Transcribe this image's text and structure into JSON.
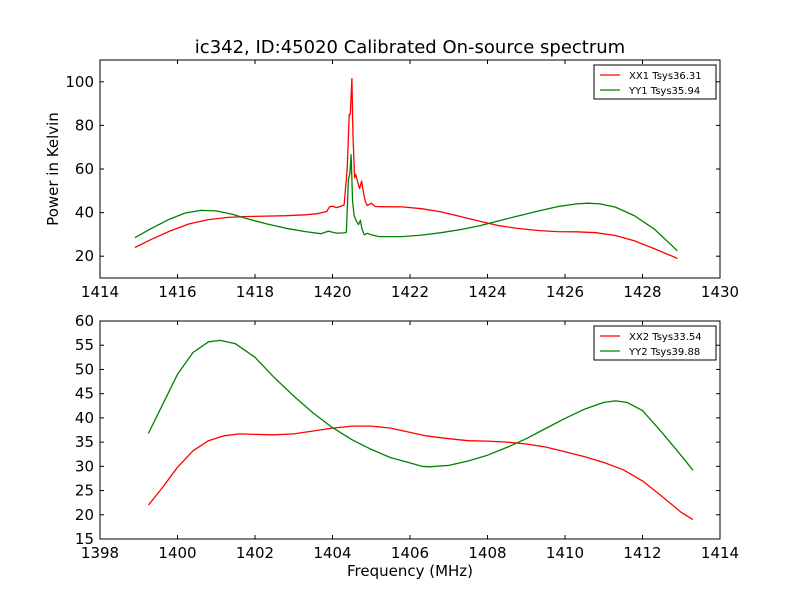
{
  "title": "ic342, ID:45020 Calibrated On-source spectrum",
  "colors": {
    "xx": "#ff0000",
    "yy": "#008000",
    "axis": "#000000",
    "background": "#ffffff"
  },
  "chart_data": [
    {
      "type": "line",
      "title": "ic342, ID:45020 Calibrated On-source spectrum",
      "xlabel": "",
      "ylabel": "Power in Kelvin",
      "xlim": [
        1414,
        1430
      ],
      "ylim": [
        10,
        110
      ],
      "xticks": [
        1414,
        1416,
        1418,
        1420,
        1422,
        1424,
        1426,
        1428,
        1430
      ],
      "yticks": [
        20,
        40,
        60,
        80,
        100
      ],
      "grid": false,
      "legend": "top-right",
      "series": [
        {
          "name": "XX1 Tsys36.31",
          "color": "#ff0000",
          "points": [
            [
              1414.9,
              24.0
            ],
            [
              1415.3,
              27.5
            ],
            [
              1415.8,
              31.5
            ],
            [
              1416.3,
              34.8
            ],
            [
              1416.8,
              36.8
            ],
            [
              1417.3,
              37.8
            ],
            [
              1417.8,
              38.2
            ],
            [
              1418.3,
              38.4
            ],
            [
              1418.8,
              38.6
            ],
            [
              1419.3,
              39.0
            ],
            [
              1419.6,
              39.5
            ],
            [
              1419.85,
              40.5
            ],
            [
              1419.92,
              42.6
            ],
            [
              1420.0,
              43.0
            ],
            [
              1420.1,
              42.3
            ],
            [
              1420.2,
              42.8
            ],
            [
              1420.3,
              43.5
            ],
            [
              1420.38,
              60.0
            ],
            [
              1420.43,
              85.0
            ],
            [
              1420.46,
              85.0
            ],
            [
              1420.5,
              101.5
            ],
            [
              1420.53,
              75.0
            ],
            [
              1420.57,
              56.0
            ],
            [
              1420.6,
              57.5
            ],
            [
              1420.65,
              54.0
            ],
            [
              1420.7,
              51.0
            ],
            [
              1420.75,
              54.5
            ],
            [
              1420.8,
              49.0
            ],
            [
              1420.85,
              45.0
            ],
            [
              1420.9,
              43.2
            ],
            [
              1421.0,
              44.3
            ],
            [
              1421.1,
              42.8
            ],
            [
              1421.3,
              42.7
            ],
            [
              1421.8,
              42.6
            ],
            [
              1422.3,
              41.8
            ],
            [
              1422.8,
              40.3
            ],
            [
              1423.3,
              38.2
            ],
            [
              1423.8,
              36.0
            ],
            [
              1424.3,
              34.0
            ],
            [
              1424.8,
              32.7
            ],
            [
              1425.3,
              31.8
            ],
            [
              1425.8,
              31.3
            ],
            [
              1426.3,
              31.2
            ],
            [
              1426.8,
              30.8
            ],
            [
              1427.3,
              29.5
            ],
            [
              1427.8,
              27.0
            ],
            [
              1428.3,
              23.5
            ],
            [
              1428.9,
              19.0
            ]
          ]
        },
        {
          "name": "YY1 Tsys35.94",
          "color": "#008000",
          "points": [
            [
              1414.9,
              28.5
            ],
            [
              1415.3,
              32.5
            ],
            [
              1415.8,
              37.0
            ],
            [
              1416.2,
              39.8
            ],
            [
              1416.6,
              41.0
            ],
            [
              1417.0,
              40.8
            ],
            [
              1417.4,
              39.3
            ],
            [
              1417.8,
              37.2
            ],
            [
              1418.3,
              34.8
            ],
            [
              1418.8,
              32.8
            ],
            [
              1419.3,
              31.3
            ],
            [
              1419.7,
              30.3
            ],
            [
              1419.9,
              31.5
            ],
            [
              1420.0,
              31.0
            ],
            [
              1420.1,
              30.6
            ],
            [
              1420.3,
              30.7
            ],
            [
              1420.36,
              31.0
            ],
            [
              1420.41,
              55.0
            ],
            [
              1420.45,
              58.0
            ],
            [
              1420.48,
              66.5
            ],
            [
              1420.52,
              45.0
            ],
            [
              1420.56,
              38.5
            ],
            [
              1420.62,
              36.0
            ],
            [
              1420.67,
              34.5
            ],
            [
              1420.72,
              36.5
            ],
            [
              1420.76,
              32.5
            ],
            [
              1420.82,
              29.8
            ],
            [
              1420.9,
              30.5
            ],
            [
              1421.0,
              29.8
            ],
            [
              1421.2,
              29.0
            ],
            [
              1421.8,
              29.0
            ],
            [
              1422.3,
              29.7
            ],
            [
              1422.8,
              30.8
            ],
            [
              1423.3,
              32.2
            ],
            [
              1423.8,
              34.0
            ],
            [
              1424.3,
              36.3
            ],
            [
              1424.8,
              38.5
            ],
            [
              1425.3,
              40.7
            ],
            [
              1425.8,
              42.7
            ],
            [
              1426.3,
              44.0
            ],
            [
              1426.6,
              44.3
            ],
            [
              1426.9,
              44.0
            ],
            [
              1427.3,
              42.5
            ],
            [
              1427.8,
              38.5
            ],
            [
              1428.3,
              32.5
            ],
            [
              1428.9,
              22.5
            ]
          ]
        }
      ]
    },
    {
      "type": "line",
      "title": "",
      "xlabel": "Frequency (MHz)",
      "ylabel": "",
      "xlim": [
        1398,
        1414
      ],
      "ylim": [
        15,
        60
      ],
      "xticks": [
        1398,
        1400,
        1402,
        1404,
        1406,
        1408,
        1410,
        1412,
        1414
      ],
      "yticks": [
        15,
        20,
        25,
        30,
        35,
        40,
        45,
        50,
        55,
        60
      ],
      "grid": false,
      "legend": "top-right",
      "series": [
        {
          "name": "XX2 Tsys33.54",
          "color": "#ff0000",
          "points": [
            [
              1399.25,
              22.0
            ],
            [
              1399.6,
              25.5
            ],
            [
              1400.0,
              29.8
            ],
            [
              1400.4,
              33.2
            ],
            [
              1400.8,
              35.3
            ],
            [
              1401.2,
              36.3
            ],
            [
              1401.6,
              36.7
            ],
            [
              1402.0,
              36.6
            ],
            [
              1402.5,
              36.5
            ],
            [
              1403.0,
              36.7
            ],
            [
              1403.5,
              37.3
            ],
            [
              1404.0,
              37.9
            ],
            [
              1404.5,
              38.3
            ],
            [
              1405.0,
              38.3
            ],
            [
              1405.5,
              37.9
            ],
            [
              1406.0,
              37.0
            ],
            [
              1406.4,
              36.3
            ],
            [
              1407.0,
              35.7
            ],
            [
              1407.5,
              35.3
            ],
            [
              1408.0,
              35.2
            ],
            [
              1408.5,
              35.0
            ],
            [
              1409.0,
              34.6
            ],
            [
              1409.5,
              34.0
            ],
            [
              1410.0,
              33.0
            ],
            [
              1410.5,
              32.0
            ],
            [
              1411.0,
              30.8
            ],
            [
              1411.5,
              29.3
            ],
            [
              1412.0,
              27.0
            ],
            [
              1412.5,
              23.8
            ],
            [
              1413.0,
              20.5
            ],
            [
              1413.3,
              19.0
            ]
          ]
        },
        {
          "name": "YY2 Tsys39.88",
          "color": "#008000",
          "points": [
            [
              1399.25,
              36.8
            ],
            [
              1399.6,
              42.5
            ],
            [
              1400.0,
              49.0
            ],
            [
              1400.4,
              53.5
            ],
            [
              1400.8,
              55.7
            ],
            [
              1401.1,
              56.0
            ],
            [
              1401.5,
              55.3
            ],
            [
              1402.0,
              52.5
            ],
            [
              1402.5,
              48.3
            ],
            [
              1403.0,
              44.5
            ],
            [
              1403.5,
              41.0
            ],
            [
              1404.0,
              38.0
            ],
            [
              1404.5,
              35.5
            ],
            [
              1405.0,
              33.5
            ],
            [
              1405.5,
              31.8
            ],
            [
              1406.0,
              30.7
            ],
            [
              1406.3,
              30.0
            ],
            [
              1406.5,
              29.9
            ],
            [
              1407.0,
              30.2
            ],
            [
              1407.5,
              31.1
            ],
            [
              1408.0,
              32.3
            ],
            [
              1408.5,
              33.9
            ],
            [
              1409.0,
              35.7
            ],
            [
              1409.5,
              37.8
            ],
            [
              1410.0,
              39.9
            ],
            [
              1410.5,
              41.8
            ],
            [
              1411.0,
              43.2
            ],
            [
              1411.3,
              43.5
            ],
            [
              1411.6,
              43.2
            ],
            [
              1412.0,
              41.5
            ],
            [
              1412.5,
              37.0
            ],
            [
              1413.0,
              32.2
            ],
            [
              1413.3,
              29.2
            ]
          ]
        }
      ]
    }
  ]
}
